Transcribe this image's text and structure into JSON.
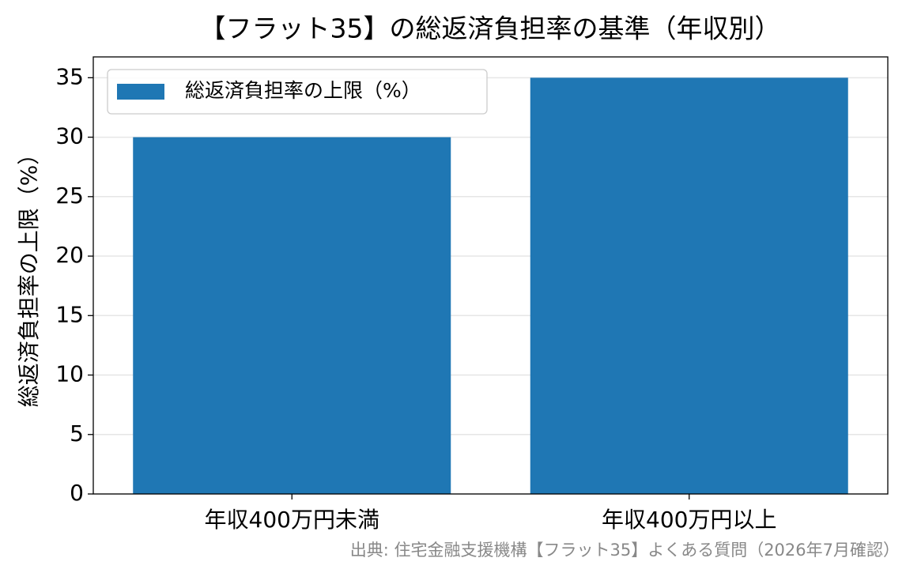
{
  "chart_data": {
    "type": "bar",
    "title": "【フラット35】の総返済負担率の基準（年収別）",
    "y_label": "総返済負担率の上限（%）",
    "categories": [
      "年収400万円未満",
      "年収400万円以上"
    ],
    "series": [
      {
        "name": "総返済負担率の上限（%）",
        "color": "#1f77b4",
        "values": [
          30,
          35
        ]
      }
    ],
    "ylim": [
      0,
      36.75
    ],
    "yticks": [
      0,
      5,
      10,
      15,
      20,
      25,
      30,
      35
    ],
    "grid": true,
    "legend": "upper-left",
    "source": "出典: 住宅金融支援機構【フラット35】よくある質問（2026年7月確認）"
  }
}
